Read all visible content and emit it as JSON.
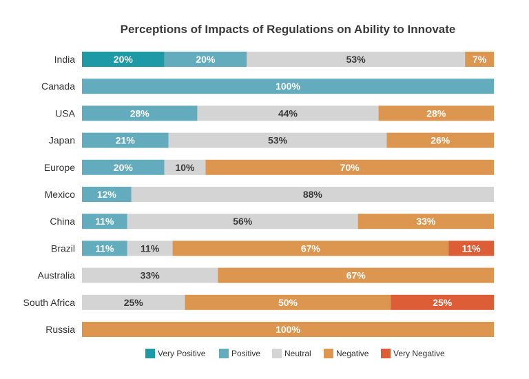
{
  "chart_data": {
    "type": "bar",
    "orientation": "horizontal",
    "stacked": "percent",
    "title": "Perceptions of Impacts of Regulations on Ability to Innovate",
    "categories": [
      "India",
      "Canada",
      "USA",
      "Japan",
      "Europe",
      "Mexico",
      "China",
      "Brazil",
      "Australia",
      "South Africa",
      "Russia"
    ],
    "series": [
      {
        "name": "Very Positive",
        "color": "#1e9aa6",
        "values": [
          20,
          0,
          0,
          0,
          0,
          0,
          0,
          0,
          0,
          0,
          0
        ],
        "labels": [
          "20%",
          "",
          "",
          "",
          "",
          "",
          "",
          "",
          "",
          "",
          ""
        ]
      },
      {
        "name": "Positive",
        "color": "#62acbd",
        "values": [
          20,
          100,
          28,
          21,
          20,
          12,
          11,
          11,
          0,
          0,
          0
        ],
        "labels": [
          "20%",
          "100%",
          "28%",
          "21%",
          "20%",
          "12%",
          "11%",
          "11%",
          "",
          "",
          ""
        ]
      },
      {
        "name": "Neutral",
        "color": "#d4d4d4",
        "values": [
          53,
          0,
          44,
          53,
          10,
          88,
          56,
          11,
          33,
          25,
          0
        ],
        "labels": [
          "53%",
          "",
          "44%",
          "53%",
          "10%",
          "88%",
          "56%",
          "11%",
          "33%",
          "25%",
          ""
        ]
      },
      {
        "name": "Negative",
        "color": "#dc964f",
        "values": [
          7,
          0,
          28,
          26,
          70,
          0,
          33,
          67,
          67,
          50,
          100
        ],
        "labels": [
          "7%",
          "",
          "28%",
          "26%",
          "70%",
          "",
          "33%",
          "67%",
          "67%",
          "50%",
          "100%"
        ]
      },
      {
        "name": "Very Negative",
        "color": "#dc5d36",
        "values": [
          0,
          0,
          0,
          0,
          0,
          0,
          0,
          11,
          0,
          25,
          0
        ],
        "labels": [
          "",
          "",
          "",
          "",
          "",
          "",
          "",
          "11%",
          "",
          "25%",
          ""
        ]
      }
    ],
    "xlim": [
      0,
      100
    ],
    "grid": false,
    "legend": "bottom"
  }
}
